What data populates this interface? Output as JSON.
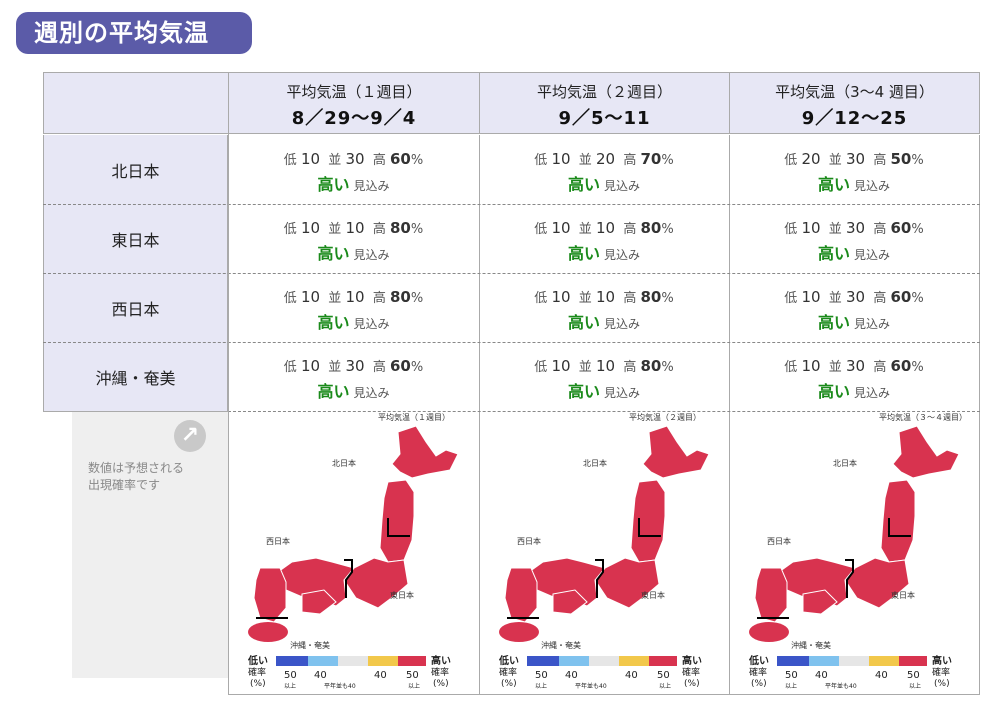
{
  "title": "週別の平均気温",
  "columns": [
    {
      "label": "平均気温（１週目）",
      "dates": "8／29〜9／4",
      "map_label": "平均気温（１週目）"
    },
    {
      "label": "平均気温（２週目）",
      "dates": "9／5〜11",
      "map_label": "平均気温（２週目）"
    },
    {
      "label": "平均気温（3〜4 週目）",
      "dates": "9／12〜25",
      "map_label": "平均気温（３〜４週目）"
    }
  ],
  "regions": [
    "北日本",
    "東日本",
    "西日本",
    "沖縄・奄美"
  ],
  "prob_labels": {
    "low": "低",
    "normal": "並",
    "high": "高",
    "percent": "%"
  },
  "outlook": {
    "word": "高い",
    "suffix": "見込み"
  },
  "cells": [
    [
      {
        "low": "10",
        "normal": "30",
        "high": "60"
      },
      {
        "low": "10",
        "normal": "20",
        "high": "70"
      },
      {
        "low": "20",
        "normal": "30",
        "high": "50"
      }
    ],
    [
      {
        "low": "10",
        "normal": "10",
        "high": "80"
      },
      {
        "low": "10",
        "normal": "10",
        "high": "80"
      },
      {
        "low": "10",
        "normal": "30",
        "high": "60"
      }
    ],
    [
      {
        "low": "10",
        "normal": "10",
        "high": "80"
      },
      {
        "low": "10",
        "normal": "10",
        "high": "80"
      },
      {
        "low": "10",
        "normal": "30",
        "high": "60"
      }
    ],
    [
      {
        "low": "10",
        "normal": "30",
        "high": "60"
      },
      {
        "low": "10",
        "normal": "10",
        "high": "80"
      },
      {
        "low": "10",
        "normal": "30",
        "high": "60"
      }
    ]
  ],
  "note": {
    "line1": "数値は予想される",
    "line2": "出現確率です"
  },
  "map_regions": {
    "north": "北日本",
    "east": "東日本",
    "west": "西日本",
    "okinawa": "沖縄・奄美"
  },
  "legend": {
    "low1": "低い",
    "low2": "確率",
    "low3": "(%)",
    "high1": "高い",
    "high2": "確率",
    "high3": "(%)",
    "v50a": "50",
    "v50a_sub": "以上",
    "v40a": "40",
    "v40b": "40",
    "v50b": "50",
    "v50b_sub": "以上",
    "normal_note": "平年並も40"
  },
  "colors": {
    "badge": "#5b5ba8",
    "header_bg": "#e7e7f5",
    "high_green": "#1a8a1a",
    "map_red": "#d8334f",
    "legend_blue": "#3b55c8",
    "legend_lightblue": "#7fc2ee",
    "legend_gray": "#e6e6e6",
    "legend_yellow": "#f2c84b",
    "legend_red": "#d8334f"
  }
}
